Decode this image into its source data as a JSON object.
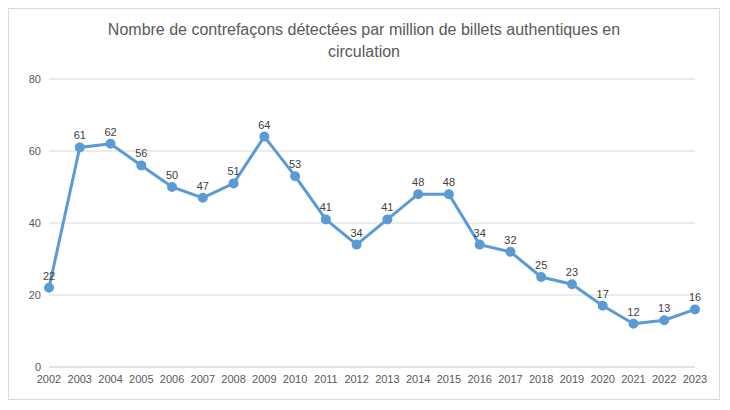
{
  "chart_data": {
    "type": "line",
    "title": "Nombre de contrefaçons détectées par million de billets authentiques en circulation",
    "categories": [
      "2002",
      "2003",
      "2004",
      "2005",
      "2006",
      "2007",
      "2008",
      "2009",
      "2010",
      "2011",
      "2012",
      "2013",
      "2014",
      "2015",
      "2016",
      "2017",
      "2018",
      "2019",
      "2020",
      "2021",
      "2022",
      "2023"
    ],
    "values": [
      22,
      61,
      62,
      56,
      50,
      47,
      51,
      64,
      53,
      41,
      34,
      41,
      48,
      48,
      34,
      32,
      25,
      23,
      17,
      12,
      13,
      16
    ],
    "color": "#5b9bd5",
    "ylim": [
      0,
      80
    ],
    "yticks": [
      0,
      20,
      40,
      60,
      80
    ],
    "grid": true,
    "data_labels": true,
    "marker": "circle"
  }
}
